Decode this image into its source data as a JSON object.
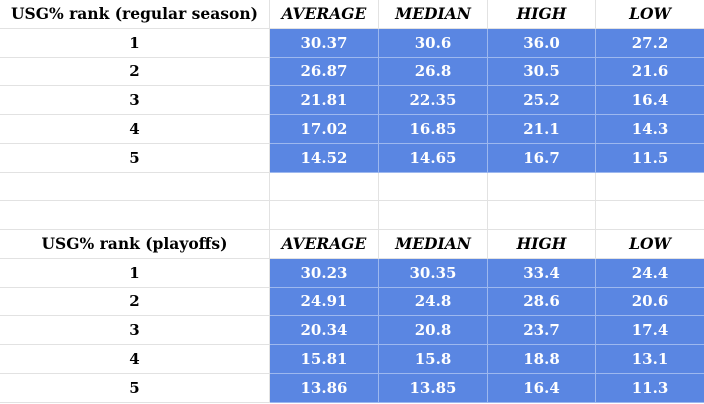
{
  "sections": [
    {
      "title": "USG% rank (regular season)",
      "headers": [
        "AVERAGE",
        "MEDIAN",
        "HIGH",
        "LOW"
      ],
      "rows": [
        {
          "rank": "1",
          "values": [
            "30.37",
            "30.6",
            "36.0",
            "27.2"
          ]
        },
        {
          "rank": "2",
          "values": [
            "26.87",
            "26.8",
            "30.5",
            "21.6"
          ]
        },
        {
          "rank": "3",
          "values": [
            "21.81",
            "22.35",
            "25.2",
            "16.4"
          ]
        },
        {
          "rank": "4",
          "values": [
            "17.02",
            "16.85",
            "21.1",
            "14.3"
          ]
        },
        {
          "rank": "5",
          "values": [
            "14.52",
            "14.65",
            "16.7",
            "11.5"
          ]
        }
      ]
    },
    {
      "title": "USG% rank (playoffs)",
      "headers": [
        "AVERAGE",
        "MEDIAN",
        "HIGH",
        "LOW"
      ],
      "rows": [
        {
          "rank": "1",
          "values": [
            "30.23",
            "30.35",
            "33.4",
            "24.4"
          ]
        },
        {
          "rank": "2",
          "values": [
            "24.91",
            "24.8",
            "28.6",
            "20.6"
          ]
        },
        {
          "rank": "3",
          "values": [
            "20.34",
            "20.8",
            "23.7",
            "17.4"
          ]
        },
        {
          "rank": "4",
          "values": [
            "15.81",
            "15.8",
            "18.8",
            "13.1"
          ]
        },
        {
          "rank": "5",
          "values": [
            "13.86",
            "13.85",
            "16.4",
            "11.3"
          ]
        }
      ]
    }
  ],
  "colors": {
    "cell_fill": "#5a86e2",
    "cell_text": "#ffffff",
    "grid_line": "#e2e2e2"
  }
}
